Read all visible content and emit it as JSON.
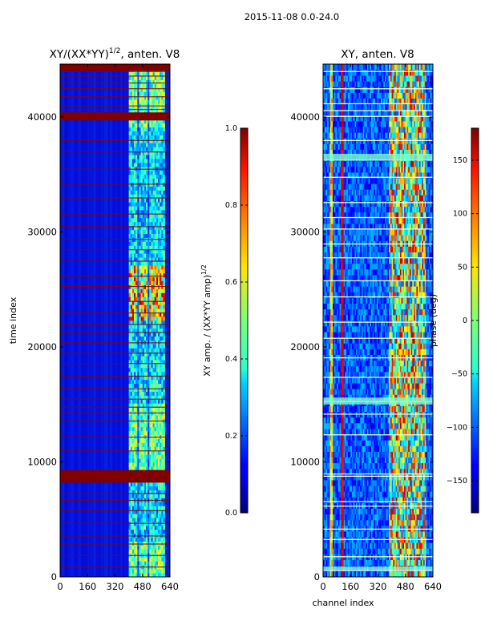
{
  "figure_title": "2015-11-08 0.0-24.0",
  "chart_data": [
    {
      "type": "heatmap",
      "title": "XY/(XX*YY)^{1/2}, anten. V8",
      "title_main": "XY/(XX*YY)",
      "title_sup": "1/2",
      "title_tail": ", anten. V8",
      "xlabel": "",
      "ylabel": "time index",
      "xlim": [
        0,
        640
      ],
      "ylim": [
        0,
        44600
      ],
      "x_ticks": [
        0,
        160,
        320,
        480,
        640
      ],
      "y_ticks": [
        0,
        10000,
        20000,
        30000,
        40000
      ],
      "colorbar": {
        "label": "XY amp. / (XX*YY amp)^{1/2}",
        "label_main": "XY amp. / (XX*YY amp)",
        "label_sup": "1/2",
        "range": [
          0.0,
          1.0
        ],
        "ticks": [
          "0.0",
          "0.2",
          "0.4",
          "0.6",
          "0.8",
          "1.0"
        ],
        "tick_values": [
          0.0,
          0.2,
          0.4,
          0.6,
          0.8,
          1.0
        ]
      }
    },
    {
      "type": "heatmap",
      "title": "XY, anten. V8",
      "xlabel": "channel index",
      "ylabel": "",
      "xlim": [
        0,
        640
      ],
      "ylim": [
        0,
        44600
      ],
      "x_ticks": [
        0,
        160,
        320,
        480,
        640
      ],
      "y_ticks": [
        0,
        10000,
        20000,
        30000,
        40000
      ],
      "colorbar": {
        "label": "phase (deg)",
        "range": [
          -180,
          180
        ],
        "ticks": [
          "−150",
          "−100",
          "−50",
          "0",
          "50",
          "100",
          "150"
        ],
        "tick_values": [
          -150,
          -100,
          -50,
          0,
          50,
          100,
          150
        ]
      }
    }
  ]
}
